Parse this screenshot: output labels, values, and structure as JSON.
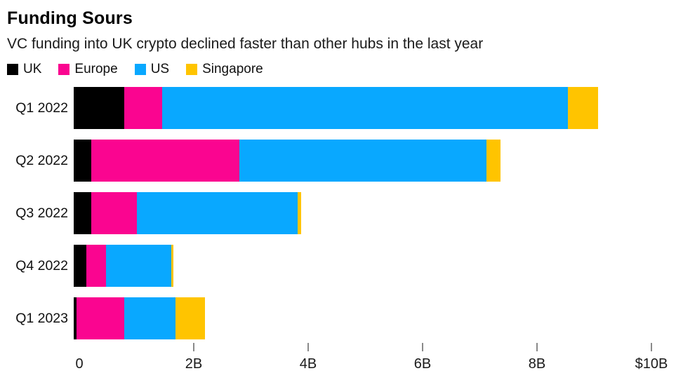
{
  "header": {
    "title": "Funding Sours",
    "subtitle": "VC funding into UK crypto declined faster than other hubs in the last year"
  },
  "legend": [
    {
      "label": "UK",
      "color": "#000000"
    },
    {
      "label": "Europe",
      "color": "#fa0590"
    },
    {
      "label": "US",
      "color": "#09a8ff"
    },
    {
      "label": "Singapore",
      "color": "#ffc400"
    }
  ],
  "chart_data": {
    "type": "bar",
    "orientation": "horizontal",
    "stacked": true,
    "title": "Funding Sours",
    "subtitle": "VC funding into UK crypto declined faster than other hubs in the last year",
    "unit": "billions USD",
    "categories": [
      "Q1 2022",
      "Q2 2022",
      "Q3 2022",
      "Q4 2022",
      "Q1 2023"
    ],
    "series": [
      {
        "name": "UK",
        "color": "#000000",
        "values": [
          0.88,
          0.31,
          0.31,
          0.22,
          0.05
        ]
      },
      {
        "name": "Europe",
        "color": "#fa0590",
        "values": [
          0.67,
          2.58,
          0.8,
          0.34,
          0.83
        ]
      },
      {
        "name": "US",
        "color": "#09a8ff",
        "values": [
          7.09,
          4.32,
          2.81,
          1.14,
          0.9
        ]
      },
      {
        "name": "Singapore",
        "color": "#ffc400",
        "values": [
          0.52,
          0.25,
          0.05,
          0.04,
          0.52
        ]
      }
    ],
    "totals": [
      9.16,
      7.46,
      3.97,
      1.74,
      2.3
    ],
    "xlim": [
      0,
      10.43
    ],
    "grid": false,
    "legend_position": "top",
    "xticks": [
      {
        "value": 0,
        "label": "0"
      },
      {
        "value": 2,
        "label": "2B"
      },
      {
        "value": 4,
        "label": "4B"
      },
      {
        "value": 6,
        "label": "6B"
      },
      {
        "value": 8,
        "label": "8B"
      },
      {
        "value": 10,
        "label": "$10B"
      }
    ]
  }
}
